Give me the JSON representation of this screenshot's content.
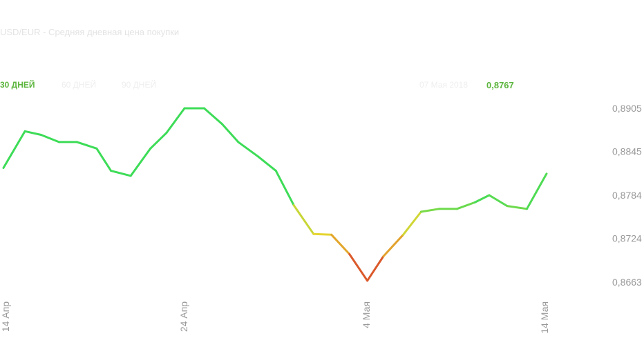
{
  "header": {
    "title": "USD/EUR - Средняя дневная цена покупки",
    "tabs": [
      {
        "label": "30 ДНЕЙ",
        "active": true
      },
      {
        "label": "60 ДНЕЙ",
        "active": false
      },
      {
        "label": "90 ДНЕЙ",
        "active": false
      }
    ],
    "readout": {
      "date": "07 Мая 2018",
      "value": "0,8767"
    }
  },
  "colors": {
    "up": "#3ddc57",
    "down": "#d94a2a",
    "mid": "#e8d52f",
    "accent": "#5cb53d",
    "axis_text": "#999999"
  },
  "chart_data": {
    "type": "line",
    "title": "USD/EUR - Средняя дневная цена покупки",
    "xlabel": "",
    "ylabel": "",
    "ylim": [
      0.8643,
      0.8925
    ],
    "yticks": [
      0.8905,
      0.8845,
      0.8784,
      0.8724,
      0.8663
    ],
    "ytick_labels": [
      "0,8905",
      "0,8845",
      "0,8784",
      "0,8724",
      "0,8663"
    ],
    "xticks": [
      {
        "label": "14 Апр",
        "x": 0
      },
      {
        "label": "24 Апр",
        "x": 10
      },
      {
        "label": "4 Мая",
        "x": 20
      },
      {
        "label": "14 Мая",
        "x": 30
      }
    ],
    "grid": false,
    "x": [
      0,
      1.2,
      2.1,
      3.1,
      4.1,
      5.2,
      6.0,
      7.1,
      8.2,
      9.1,
      10.1,
      11.2,
      12.2,
      13.1,
      14.2,
      15.2,
      16.2,
      17.3,
      18.3,
      19.3,
      20.3,
      21.2,
      22.3,
      23.3,
      24.3,
      25.3,
      26.3,
      27.1,
      28.1,
      29.2,
      30.3
    ],
    "values": [
      0.8822,
      0.8873,
      0.8868,
      0.8858,
      0.8858,
      0.8849,
      0.8818,
      0.8811,
      0.8849,
      0.8871,
      0.8905,
      0.8905,
      0.8883,
      0.8858,
      0.8838,
      0.8818,
      0.877,
      0.873,
      0.8729,
      0.8702,
      0.8665,
      0.8699,
      0.8729,
      0.8761,
      0.8765,
      0.8765,
      0.8774,
      0.8784,
      0.8769,
      0.8765,
      0.8814
    ]
  }
}
